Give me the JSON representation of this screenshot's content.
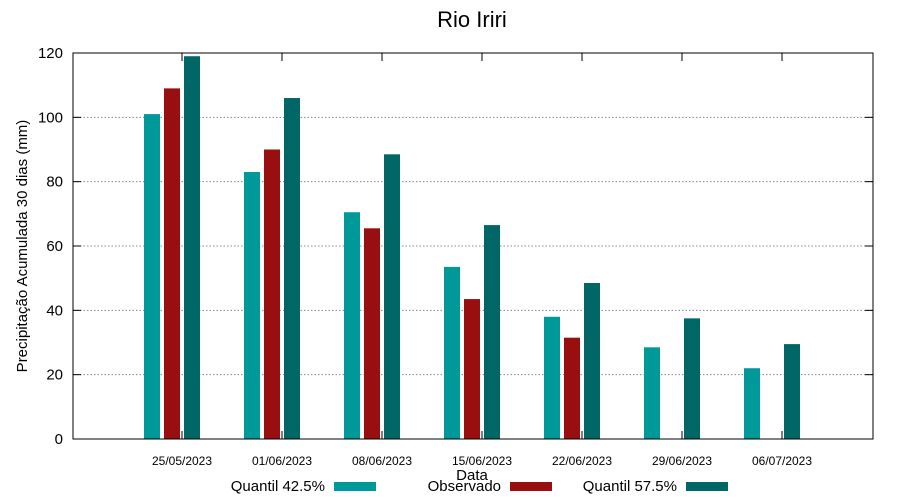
{
  "chart_data": {
    "type": "bar",
    "title": "Rio Iriri",
    "xlabel": "Data",
    "ylabel": "Precipitação Acumulada 30 dias (mm)",
    "ylim": [
      0,
      120
    ],
    "yticks": [
      0,
      20,
      40,
      60,
      80,
      100,
      120
    ],
    "grid": true,
    "legend_position": "bottom",
    "categories": [
      "25/05/2023",
      "01/06/2023",
      "08/06/2023",
      "15/06/2023",
      "22/06/2023",
      "29/06/2023",
      "06/07/2023"
    ],
    "series": [
      {
        "name": "Quantil 42.5%",
        "color": "#009999",
        "values": [
          101,
          83,
          70.5,
          53.5,
          38,
          28.5,
          22
        ]
      },
      {
        "name": "Observado",
        "color": "#990f0f",
        "values": [
          109,
          90,
          65.5,
          43.5,
          31.5,
          null,
          null
        ]
      },
      {
        "name": "Quantil 57.5%",
        "color": "#006666",
        "values": [
          119,
          106,
          88.5,
          66.5,
          48.5,
          37.5,
          29.5
        ]
      }
    ]
  }
}
